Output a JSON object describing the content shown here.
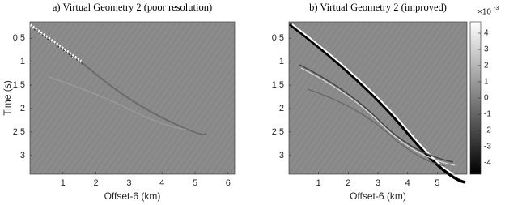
{
  "chart_data": [
    {
      "type": "heatmap",
      "title": "a) Virtual Geometry 2 (poor resolution)",
      "xlabel": "Offset-6 (km)",
      "ylabel": "Time (s)",
      "xlim": [
        0,
        6.2
      ],
      "xticks": [
        1,
        2,
        3,
        4,
        5,
        6
      ],
      "ylim": [
        0.15,
        3.4
      ],
      "yticks": [
        0.5,
        1,
        1.5,
        2,
        2.5,
        3
      ]
    },
    {
      "type": "heatmap",
      "title": "b) Virtual Geometry 2 (improved)",
      "xlabel": "Offset-6 (km)",
      "xlim": [
        0,
        6
      ],
      "xticks": [
        1,
        2,
        3,
        4,
        5
      ],
      "ylim": [
        0.15,
        3.4
      ],
      "yticks": [
        0.5,
        1,
        1.5,
        2,
        2.5,
        3
      ],
      "colorbar_multiplier": "×10",
      "colorbar_exponent": "-3",
      "clim": [
        -4.7,
        4.7
      ],
      "cticks": [
        -4,
        -3,
        -2,
        -1,
        0,
        1,
        2,
        3,
        4
      ]
    }
  ]
}
